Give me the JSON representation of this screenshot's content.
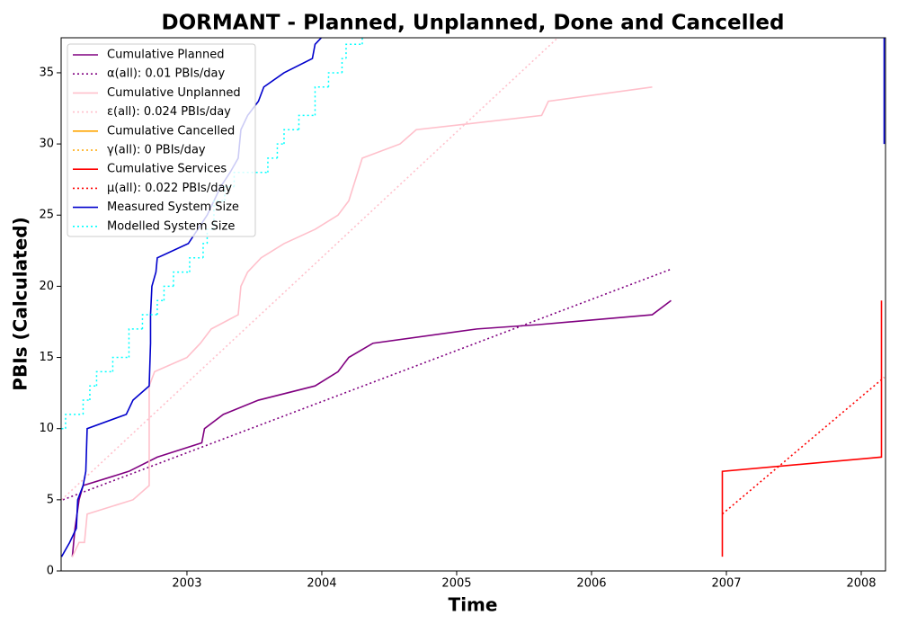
{
  "chart_data": {
    "type": "line",
    "title": "DORMANT - Planned, Unplanned, Done  and Cancelled",
    "xlabel": "Time",
    "ylabel": "PBIs (Calculated)",
    "xlim": [
      2002.067,
      2008.18
    ],
    "ylim": [
      0,
      37.46
    ],
    "xticks": [
      2003,
      2004,
      2005,
      2006,
      2007,
      2008
    ],
    "yticks": [
      0,
      5,
      10,
      15,
      20,
      25,
      30,
      35
    ],
    "legend": "upper left",
    "series": [
      {
        "name": "Cumulative Planned",
        "color": "#800080",
        "style": "solid",
        "x": [
          2002.15,
          2002.17,
          2002.2,
          2002.23,
          2002.57,
          2002.78,
          2003.11,
          2003.13,
          2003.27,
          2003.53,
          2003.95,
          2004.12,
          2004.2,
          2004.38,
          2005.15,
          2005.6,
          2006.45,
          2006.59
        ],
        "values": [
          1,
          3,
          5,
          6,
          7,
          8,
          9,
          10,
          11,
          12,
          13,
          14,
          15,
          16,
          17,
          17.3,
          18,
          19
        ]
      },
      {
        "name": "α(all): 0.01 PBIs/day",
        "color": "#800080",
        "style": "dotted",
        "x": [
          2002.08,
          2006.59
        ],
        "values": [
          5,
          21.2
        ]
      },
      {
        "name": "Cumulative Unplanned",
        "color": "#ffc0cb",
        "style": "solid",
        "x": [
          2002.15,
          2002.2,
          2002.24,
          2002.26,
          2002.6,
          2002.72,
          2002.72,
          2002.76,
          2003.0,
          2003.1,
          2003.18,
          2003.38,
          2003.4,
          2003.45,
          2003.55,
          2003.72,
          2003.95,
          2004.12,
          2004.2,
          2004.3,
          2004.58,
          2004.7,
          2005.63,
          2005.68,
          2006.45
        ],
        "values": [
          1,
          2,
          2,
          4,
          5,
          6,
          13,
          14,
          15,
          16,
          17,
          18,
          20,
          21,
          22,
          23,
          24,
          25,
          26,
          29,
          30,
          31,
          32,
          33,
          34
        ]
      },
      {
        "name": "ε(all): 0.024 PBIs/day",
        "color": "#ffc0cb",
        "style": "dotted",
        "x": [
          2002.07,
          2005.75
        ],
        "values": [
          5,
          37.46
        ]
      },
      {
        "name": "Cumulative Cancelled",
        "color": "#ffa500",
        "style": "solid",
        "x": [],
        "values": []
      },
      {
        "name": "γ(all): 0 PBIs/day",
        "color": "#ffa500",
        "style": "dotted",
        "x": [],
        "values": []
      },
      {
        "name": "Cumulative Services",
        "color": "#ff0000",
        "style": "solid",
        "x": [
          2006.97,
          2006.97,
          2008.15,
          2008.15
        ],
        "values": [
          1,
          7,
          8,
          19
        ]
      },
      {
        "name": "μ(all): 0.022 PBIs/day",
        "color": "#ff0000",
        "style": "dotted",
        "x": [
          2006.97,
          2008.17
        ],
        "values": [
          4,
          13.6
        ]
      },
      {
        "name": "Measured System Size",
        "color": "#0000cc",
        "style": "solid",
        "x": [
          2002.07,
          2002.13,
          2002.18,
          2002.19,
          2002.23,
          2002.25,
          2002.26,
          2002.55,
          2002.6,
          2002.72,
          2002.73,
          2002.73,
          2002.74,
          2002.77,
          2002.78,
          2003.01,
          2003.08,
          2003.15,
          2003.2,
          2003.25,
          2003.32,
          2003.38,
          2003.4,
          2003.45,
          2003.53,
          2003.57,
          2003.72,
          2003.93,
          2003.95,
          2004.05,
          null,
          2008.17,
          2008.17
        ],
        "values": [
          1,
          2,
          3,
          5,
          6,
          7,
          10,
          11,
          12,
          13,
          16,
          18,
          20,
          21,
          22,
          23,
          24,
          25,
          26,
          27,
          28,
          29,
          31,
          32,
          33,
          34,
          35,
          36,
          37,
          38,
          null,
          30,
          38
        ]
      },
      {
        "name": "Modelled System Size",
        "color": "#00ffff",
        "style": "dotted",
        "step": true,
        "x": [
          2002.07,
          2002.1,
          2002.23,
          2002.28,
          2002.33,
          2002.45,
          2002.57,
          2002.67,
          2002.78,
          2002.83,
          2002.9,
          2003.02,
          2003.12,
          2003.15,
          2003.2,
          2003.28,
          2003.35,
          2003.6,
          2003.67,
          2003.72,
          2003.83,
          2003.95,
          2004.05,
          2004.15,
          2004.18,
          2004.3
        ],
        "values": [
          10,
          11,
          12,
          13,
          14,
          15,
          17,
          18,
          19,
          20,
          21,
          22,
          23,
          24,
          26,
          27,
          28,
          29,
          30,
          31,
          32,
          34,
          35,
          36,
          37,
          38
        ]
      }
    ]
  }
}
